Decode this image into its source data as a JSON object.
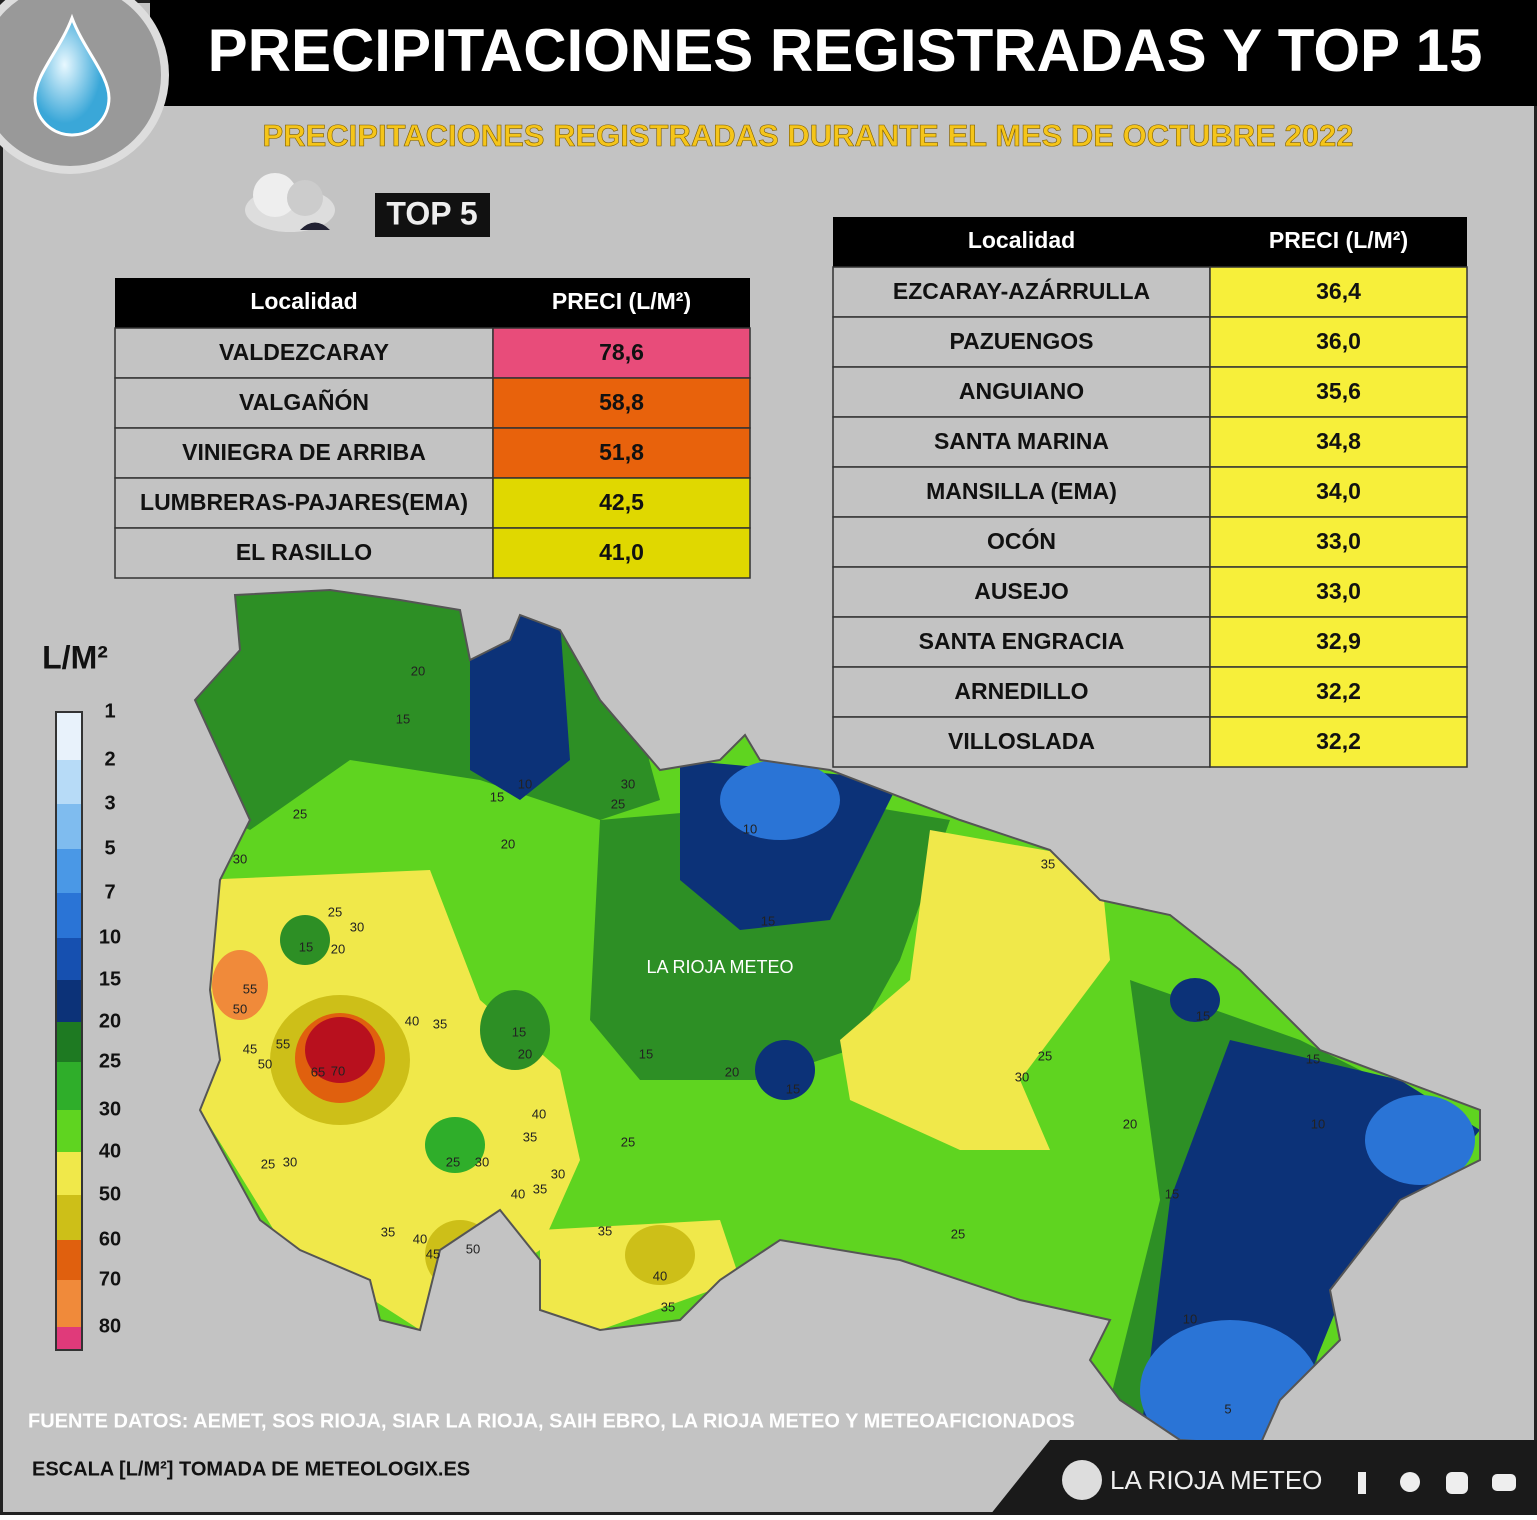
{
  "header": {
    "title": "PRECIPITACIONES REGISTRADAS Y TOP 15",
    "subtitle": "PRECIPITACIONES REGISTRADAS DURANTE EL MES DE OCTUBRE 2022",
    "badge": "TOP 5"
  },
  "top5": {
    "columns": [
      "Localidad",
      "PRECI (L/M²)"
    ],
    "rows": [
      [
        "VALDEZCARAY",
        "78,6"
      ],
      [
        "VALGAÑÓN",
        "58,8"
      ],
      [
        "VINIEGRA DE ARRIBA",
        "51,8"
      ],
      [
        "LUMBRERAS-PAJARES(EMA)",
        "42,5"
      ],
      [
        "EL RASILLO",
        "41,0"
      ]
    ],
    "colors": [
      "#e84c7a",
      "#e8620c",
      "#e8620c",
      "#e0d800",
      "#e0d800"
    ]
  },
  "top15": {
    "columns": [
      "Localidad",
      "PRECI (L/M²)"
    ],
    "rows": [
      [
        "EZCARAY-AZÁRRULLA",
        "36,4"
      ],
      [
        "PAZUENGOS",
        "36,0"
      ],
      [
        "ANGUIANO",
        "35,6"
      ],
      [
        "SANTA MARINA",
        "34,8"
      ],
      [
        "MANSILLA (EMA)",
        "34,0"
      ],
      [
        "OCÓN",
        "33,0"
      ],
      [
        "AUSEJO",
        "33,0"
      ],
      [
        "SANTA ENGRACIA",
        "32,9"
      ],
      [
        "ARNEDILLO",
        "32,2"
      ],
      [
        "VILLOSLADA",
        "32,2"
      ]
    ],
    "color": "#f7ef3a"
  },
  "legend": {
    "title": "L/M²",
    "labels": [
      1,
      2,
      3,
      5,
      7,
      10,
      15,
      20,
      25,
      30,
      40,
      50,
      60,
      70,
      80
    ],
    "colors": [
      "#e8f2fb",
      "#b7dbf7",
      "#7fbcef",
      "#4a98e6",
      "#2a74d6",
      "#1650b0",
      "#0c3278",
      "#1e7a22",
      "#2fae2a",
      "#5fd420",
      "#f0e84a",
      "#cdbf18",
      "#e0600e",
      "#f08a3a",
      "#e03a7a"
    ]
  },
  "map": {
    "watermark": "LA RIOJA METEO",
    "contours": [
      20,
      15,
      10,
      15,
      20,
      25,
      30,
      25,
      10,
      15,
      30,
      15,
      25,
      20,
      30,
      55,
      50,
      45,
      50,
      55,
      65,
      70,
      40,
      35,
      15,
      20,
      15,
      20,
      15,
      40,
      35,
      25,
      30,
      25,
      30,
      40,
      35,
      35,
      40,
      45,
      50,
      35,
      40,
      35,
      25,
      30,
      35,
      25,
      30,
      20,
      25,
      15,
      15,
      10,
      15,
      10,
      5
    ]
  },
  "footer": {
    "sources": "FUENTE DATOS: AEMET, SOS RIOJA, SIAR LA RIOJA, SAIH EBRO, LA RIOJA METEO  Y METEOAFICIONADOS",
    "scale": "ESCALA [L/M²] TOMADA DE METEOLOGIX.ES",
    "brand": "LA RIOJA METEO"
  }
}
